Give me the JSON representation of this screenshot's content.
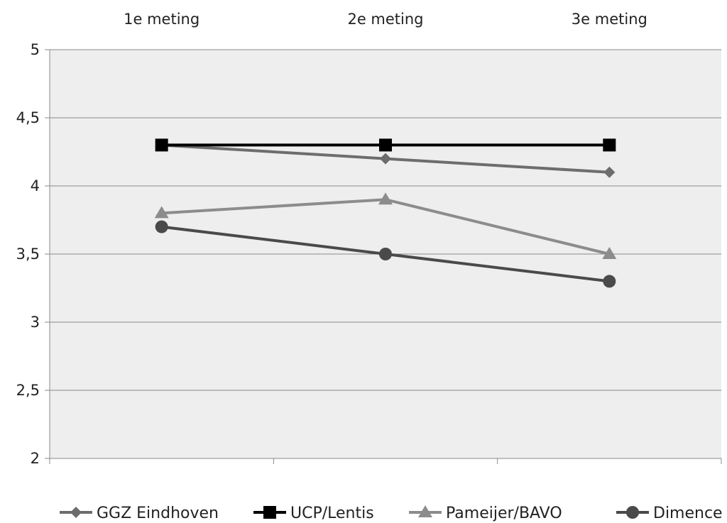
{
  "chart_data": {
    "type": "line",
    "categories": [
      "1e meting",
      "2e meting",
      "3e meting"
    ],
    "ylim": [
      2,
      5
    ],
    "yticks": [
      2,
      2.5,
      3,
      3.5,
      4,
      4.5,
      5
    ],
    "ytick_labels": [
      "2",
      "2,5",
      "3",
      "3,5",
      "4",
      "4,5",
      "5"
    ],
    "grid": true,
    "legend_position": "bottom",
    "category_axis_position": "top",
    "title": "",
    "xlabel": "",
    "ylabel": "",
    "series": [
      {
        "name": "GGZ Eindhoven",
        "values": [
          4.3,
          4.2,
          4.1
        ],
        "color": "#6d6d6d",
        "marker": "diamond"
      },
      {
        "name": "UCP/Lentis",
        "values": [
          4.3,
          4.3,
          4.3
        ],
        "color": "#000000",
        "marker": "square"
      },
      {
        "name": "Pameijer/BAVO",
        "values": [
          3.8,
          3.9,
          3.5
        ],
        "color": "#8c8c8c",
        "marker": "triangle"
      },
      {
        "name": "Dimence",
        "values": [
          3.7,
          3.5,
          3.3
        ],
        "color": "#4a4a4a",
        "marker": "circle"
      }
    ]
  }
}
